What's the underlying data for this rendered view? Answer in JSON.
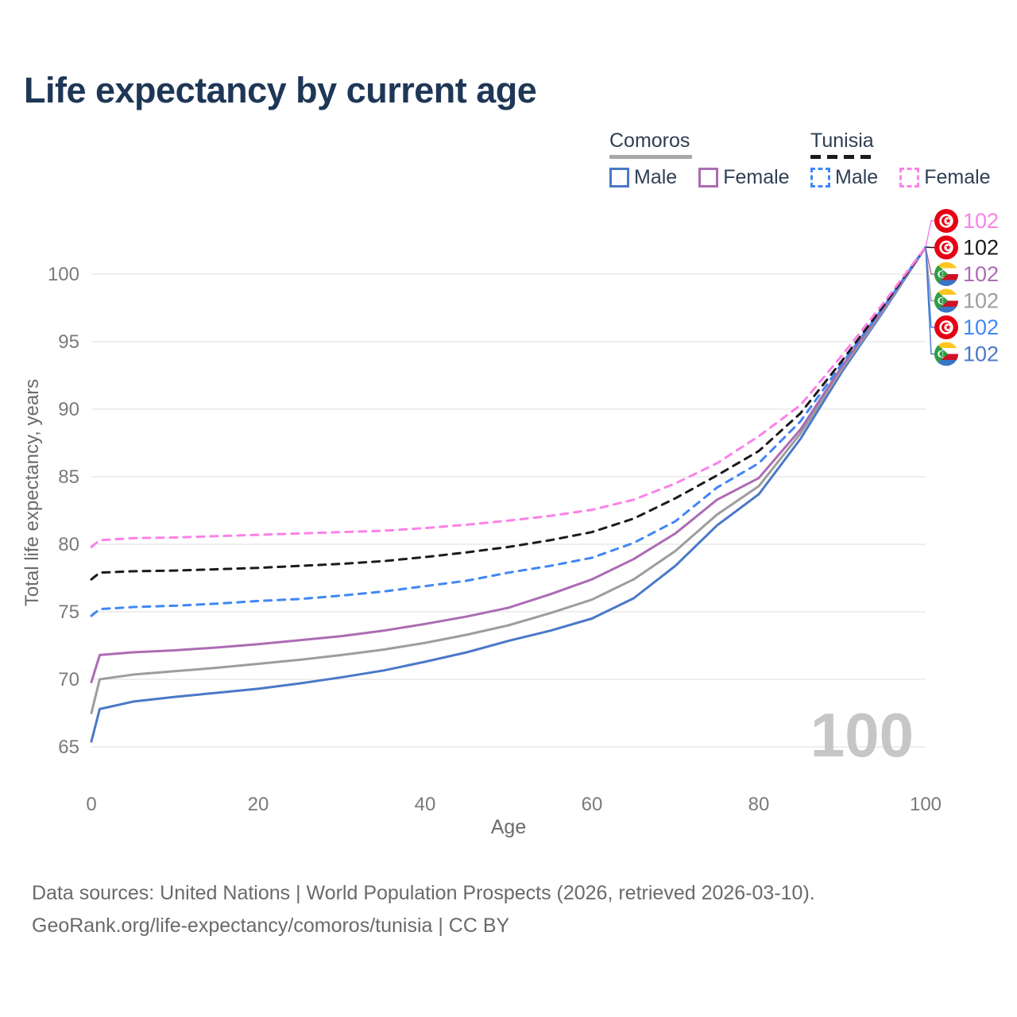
{
  "title": "Life expectancy by current age",
  "legend": {
    "groups": [
      {
        "id": "comoros",
        "label": "Comoros",
        "line_style": "solid",
        "underline_color": "#a8a8a8",
        "items": [
          {
            "label": "Male",
            "color": "#4a78c8",
            "dashed": false
          },
          {
            "label": "Female",
            "color": "#ac6cb3",
            "dashed": false
          }
        ]
      },
      {
        "id": "tunisia",
        "label": "Tunisia",
        "line_style": "dashed",
        "underline_color": "#1b1b1b",
        "items": [
          {
            "label": "Male",
            "color": "#4187f5",
            "dashed": true
          },
          {
            "label": "Female",
            "color": "#fc81e8",
            "dashed": true
          }
        ]
      }
    ]
  },
  "watermark": "100",
  "footer": {
    "line1": "Data sources: United Nations | World Population Prospects (2026, retrieved 2026-03-10).",
    "line2": "GeoRank.org/life-expectancy/comoros/tunisia | CC BY"
  },
  "colors": {
    "title": "#1e3756",
    "axis_text": "#7a7a7a",
    "axis_title": "#6b6b6b",
    "gridline": "#e9e9e9",
    "watermark": "#c6c6c6",
    "tunisia_flag_red": "#e70013",
    "comoros_yellow": "#ffc61e",
    "comoros_red": "#ce1126",
    "comoros_blue": "#3a75c4",
    "comoros_green": "#2f9e44"
  },
  "chart_data": {
    "type": "line",
    "title": "Life expectancy by current age",
    "xlabel": "Age",
    "ylabel": "Total life expectancy, years",
    "x_ticks": [
      0,
      20,
      40,
      60,
      80,
      100
    ],
    "y_ticks": [
      65,
      70,
      75,
      80,
      85,
      90,
      95,
      100
    ],
    "xlim": [
      0,
      100
    ],
    "ylim": [
      63.5,
      103.5
    ],
    "grid": "horizontal-only",
    "legend_position": "top-right",
    "x": [
      0,
      1,
      5,
      10,
      15,
      20,
      25,
      30,
      35,
      40,
      45,
      50,
      55,
      60,
      65,
      70,
      75,
      80,
      85,
      90,
      95,
      100
    ],
    "series": [
      {
        "name": "Tunisia Female",
        "country": "Tunisia",
        "sex": "Female",
        "color": "#fc81e8",
        "dash": true,
        "end_label": "102",
        "flag": "tunisia",
        "values": [
          79.8,
          80.3,
          80.45,
          80.5,
          80.6,
          80.7,
          80.8,
          80.9,
          81.0,
          81.2,
          81.45,
          81.75,
          82.1,
          82.55,
          83.3,
          84.5,
          86.0,
          88.0,
          90.3,
          94.0,
          97.9,
          102
        ]
      },
      {
        "name": "Tunisia Total",
        "country": "Tunisia",
        "sex": "Total",
        "color": "#1b1b1b",
        "dash": true,
        "end_label": "102",
        "flag": "tunisia",
        "values": [
          77.4,
          77.9,
          78.0,
          78.05,
          78.15,
          78.25,
          78.4,
          78.55,
          78.75,
          79.05,
          79.4,
          79.8,
          80.3,
          80.9,
          81.9,
          83.4,
          85.1,
          86.9,
          89.7,
          93.6,
          97.7,
          102
        ]
      },
      {
        "name": "Comoros Female",
        "country": "Comoros",
        "sex": "Female",
        "color": "#ac6cb3",
        "dash": false,
        "end_label": "102",
        "flag": "comoros",
        "values": [
          69.8,
          71.8,
          72.0,
          72.15,
          72.35,
          72.6,
          72.9,
          73.2,
          73.6,
          74.1,
          74.65,
          75.3,
          76.3,
          77.4,
          78.9,
          80.8,
          83.3,
          84.9,
          88.5,
          93.2,
          97.5,
          102
        ]
      },
      {
        "name": "Comoros Total",
        "country": "Comoros",
        "sex": "Total",
        "color": "#9d9d9d",
        "dash": false,
        "end_label": "102",
        "flag": "comoros",
        "values": [
          67.5,
          70.0,
          70.35,
          70.6,
          70.85,
          71.15,
          71.45,
          71.8,
          72.2,
          72.7,
          73.3,
          74.0,
          74.9,
          75.9,
          77.4,
          79.5,
          82.2,
          84.3,
          88.2,
          93.0,
          97.4,
          102
        ]
      },
      {
        "name": "Tunisia Male",
        "country": "Tunisia",
        "sex": "Male",
        "color": "#4187f5",
        "dash": true,
        "end_label": "102",
        "flag": "tunisia",
        "values": [
          74.7,
          75.2,
          75.35,
          75.45,
          75.6,
          75.8,
          75.95,
          76.2,
          76.5,
          76.9,
          77.3,
          77.9,
          78.4,
          79.0,
          80.1,
          81.7,
          84.2,
          86.0,
          89.1,
          93.4,
          97.6,
          102
        ]
      },
      {
        "name": "Comoros Male",
        "country": "Comoros",
        "sex": "Male",
        "color": "#4a78c8",
        "dash": false,
        "end_label": "102",
        "flag": "comoros",
        "values": [
          65.4,
          67.8,
          68.35,
          68.7,
          69.0,
          69.3,
          69.7,
          70.15,
          70.65,
          71.3,
          72.0,
          72.85,
          73.6,
          74.5,
          76.0,
          78.4,
          81.4,
          83.7,
          87.8,
          92.8,
          97.3,
          102
        ]
      }
    ]
  }
}
